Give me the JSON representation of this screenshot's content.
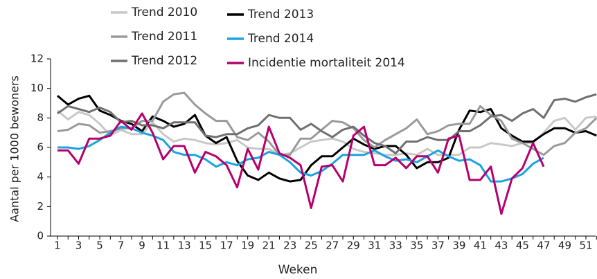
{
  "chart_data": {
    "type": "line",
    "y_label": "Aantal per 1000 bewoners",
    "x_label": "Weken",
    "categories": [
      1,
      null,
      3,
      null,
      5,
      null,
      7,
      null,
      9,
      null,
      11,
      null,
      13,
      null,
      15,
      null,
      17,
      null,
      19,
      null,
      21,
      null,
      23,
      null,
      25,
      null,
      27,
      null,
      29,
      null,
      31,
      null,
      33,
      null,
      35,
      null,
      37,
      null,
      39,
      null,
      41,
      null,
      43,
      null,
      45,
      null,
      47,
      null,
      49,
      null,
      51,
      null
    ],
    "ylim": [
      0,
      12
    ],
    "yticks": [
      0,
      2,
      4,
      6,
      8,
      10,
      12
    ],
    "series": [
      {
        "name": "Trend 2010",
        "color": "#c8c8c8",
        "values": [
          8.5,
          7.9,
          8.4,
          8.2,
          7.6,
          6.8,
          7.2,
          6.9,
          6.9,
          7.7,
          6.9,
          6.4,
          6.6,
          6.5,
          6.3,
          6.2,
          6.3,
          6.5,
          6.0,
          5.9,
          5.9,
          5.5,
          5.6,
          6.0,
          6.4,
          6.5,
          6.6,
          6.4,
          5.9,
          5.7,
          5.6,
          5.5,
          5.5,
          5.6,
          5.5,
          5.9,
          5.5,
          5.5,
          5.5,
          6.0,
          6.0,
          6.3,
          6.2,
          6.1,
          6.3,
          6.3,
          7.0,
          7.8,
          8.0,
          7.2,
          8.0,
          8.1
        ]
      },
      {
        "name": "Trend 2013",
        "color": "#000000",
        "values": [
          9.5,
          8.9,
          9.3,
          9.5,
          8.5,
          8.2,
          7.8,
          7.6,
          7.1,
          8.1,
          7.8,
          7.4,
          7.6,
          8.2,
          6.8,
          6.3,
          6.7,
          5.1,
          4.1,
          3.8,
          4.3,
          3.9,
          3.7,
          3.8,
          4.8,
          5.4,
          5.4,
          6.0,
          6.6,
          6.2,
          5.9,
          6.1,
          6.1,
          5.5,
          4.6,
          5.0,
          5.0,
          5.3,
          7.2,
          8.5,
          8.4,
          8.6,
          7.3,
          6.8,
          6.4,
          6.4,
          6.9,
          7.3,
          7.3,
          7.0,
          7.1,
          6.8
        ]
      },
      {
        "name": "Trend 2011",
        "color": "#9a9a9a",
        "values": [
          7.1,
          7.2,
          7.6,
          7.5,
          7.0,
          7.1,
          7.3,
          7.3,
          7.8,
          7.8,
          9.1,
          9.6,
          9.7,
          8.9,
          8.3,
          7.8,
          7.8,
          6.7,
          6.5,
          7.0,
          6.4,
          5.5,
          5.5,
          6.6,
          6.6,
          7.2,
          7.8,
          7.7,
          7.3,
          6.5,
          6.0,
          6.5,
          6.9,
          7.3,
          7.9,
          6.9,
          7.1,
          7.5,
          7.6,
          7.6,
          8.8,
          8.2,
          7.8,
          6.6,
          6.3,
          5.9,
          5.5,
          6.1,
          6.3,
          7.0,
          7.3,
          8.0
        ]
      },
      {
        "name": "Trend 2014",
        "color": "#1aa3e0",
        "values": [
          6.0,
          6.0,
          5.9,
          6.1,
          6.5,
          7.0,
          7.4,
          7.3,
          7.0,
          6.8,
          6.5,
          5.7,
          5.5,
          5.5,
          5.2,
          4.7,
          5.0,
          4.8,
          5.2,
          5.3,
          5.7,
          5.5,
          5.0,
          4.3,
          4.1,
          4.4,
          4.9,
          5.5,
          5.5,
          5.5,
          5.8,
          5.4,
          5.1,
          5.2,
          5.0,
          5.4,
          5.8,
          5.4,
          5.1,
          5.2,
          4.8,
          3.7,
          3.7,
          3.9,
          4.2,
          4.9,
          5.3,
          null,
          null,
          null,
          null,
          null
        ]
      },
      {
        "name": "Trend 2012",
        "color": "#707070",
        "values": [
          8.3,
          8.8,
          8.6,
          8.4,
          8.7,
          8.4,
          7.7,
          7.8,
          7.5,
          7.5,
          7.3,
          7.7,
          7.7,
          7.7,
          6.8,
          6.7,
          6.9,
          6.9,
          7.3,
          7.5,
          8.2,
          8.0,
          8.0,
          7.2,
          7.6,
          7.1,
          6.7,
          7.2,
          7.4,
          6.8,
          6.3,
          6.1,
          5.6,
          6.4,
          6.4,
          6.7,
          6.5,
          6.5,
          7.1,
          7.1,
          7.5,
          8.1,
          8.2,
          7.8,
          8.3,
          8.6,
          8.0,
          9.2,
          9.3,
          9.1,
          9.4,
          9.6
        ]
      },
      {
        "name": "Incidentie mortaliteit 2014",
        "color": "#b5006e",
        "values": [
          5.8,
          5.8,
          4.9,
          6.6,
          6.6,
          6.8,
          7.8,
          7.2,
          8.3,
          7.0,
          5.2,
          6.1,
          6.1,
          4.3,
          5.7,
          5.4,
          4.8,
          3.3,
          5.9,
          4.5,
          7.4,
          5.6,
          5.3,
          4.8,
          1.9,
          4.7,
          4.8,
          3.7,
          6.8,
          7.4,
          4.8,
          4.8,
          5.3,
          4.6,
          5.4,
          5.4,
          4.3,
          6.6,
          6.8,
          3.8,
          3.8,
          4.7,
          1.5,
          3.9,
          4.6,
          6.3,
          4.7,
          null,
          null,
          null,
          null,
          null
        ]
      }
    ]
  }
}
